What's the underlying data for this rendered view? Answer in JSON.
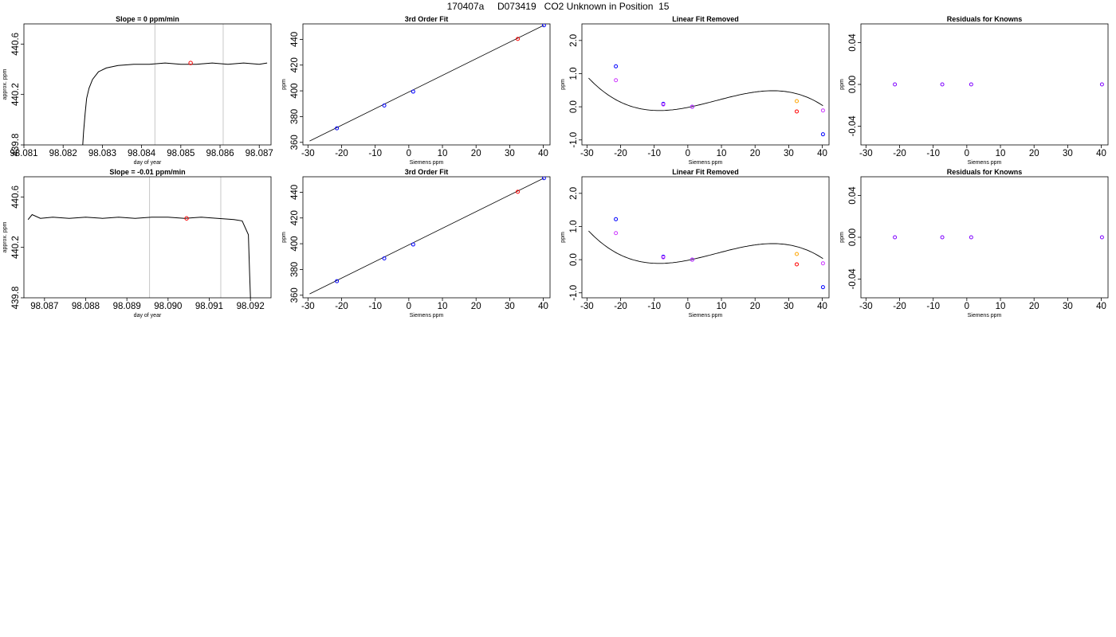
{
  "page_title": "170407a     D073419   CO2 Unknown in Position  15",
  "colors": {
    "line": "#000000",
    "grid": "#c8c8c8",
    "blue": "#0000ff",
    "red": "#ff0000",
    "magenta": "#cc33ff",
    "orange": "#ffa500",
    "purple": "#7f00ff"
  },
  "chart_data": [
    {
      "type": "line",
      "title": "Slope =  0  ppm/min",
      "xlabel": "day of year",
      "ylabel": "approx. ppm",
      "xlim": [
        98.081,
        98.0873
      ],
      "ylim": [
        439.8,
        440.76
      ],
      "xticks": [
        "98.081",
        "98.082",
        "98.083",
        "98.084",
        "98.085",
        "98.086",
        "98.087"
      ],
      "yticks": [
        "439.8",
        "440.2",
        "440.6"
      ],
      "vlines": [
        98.08434,
        98.08608
      ],
      "series": [
        {
          "points": [
            [
              98.0825,
              439.8
            ],
            [
              98.08252,
              439.9
            ],
            [
              98.08256,
              440.05
            ],
            [
              98.0826,
              440.17
            ],
            [
              98.08266,
              440.25
            ],
            [
              98.08275,
              440.32
            ],
            [
              98.0829,
              440.38
            ],
            [
              98.0831,
              440.41
            ],
            [
              98.0834,
              440.43
            ],
            [
              98.0838,
              440.44
            ],
            [
              98.0842,
              440.44
            ],
            [
              98.0846,
              440.45
            ],
            [
              98.085,
              440.44
            ],
            [
              98.0854,
              440.44
            ],
            [
              98.0858,
              440.45
            ],
            [
              98.0862,
              440.44
            ],
            [
              98.0866,
              440.45
            ],
            [
              98.087,
              440.44
            ],
            [
              98.0872,
              440.45
            ]
          ]
        }
      ],
      "markers": [
        {
          "x": 98.08525,
          "y": 440.45,
          "color": "red"
        }
      ]
    },
    {
      "type": "scatter",
      "title": "3rd Order Fit",
      "xlabel": "Siemens ppm",
      "ylabel": "ppm",
      "xlim": [
        -31.5,
        42
      ],
      "ylim": [
        358,
        452
      ],
      "xticks": [
        "-30",
        "-20",
        "-10",
        "0",
        "10",
        "20",
        "30",
        "40"
      ],
      "yticks": [
        "360",
        "380",
        "400",
        "420",
        "440"
      ],
      "fit_line": [
        [
          -29.5,
          361
        ],
        [
          40.2,
          451
        ]
      ],
      "points": [
        {
          "x": -21.4,
          "y": 370.9,
          "color": "blue"
        },
        {
          "x": -7.3,
          "y": 388.6,
          "color": "blue"
        },
        {
          "x": 1.3,
          "y": 399.4,
          "color": "blue"
        },
        {
          "x": 32.4,
          "y": 440.3,
          "color": "red"
        },
        {
          "x": 40.2,
          "y": 450.9,
          "color": "blue"
        }
      ]
    },
    {
      "type": "scatter",
      "title": "Linear Fit Removed",
      "xlabel": "Siemens ppm",
      "ylabel": "ppm",
      "xlim": [
        -31.5,
        42
      ],
      "ylim": [
        -1.15,
        2.5
      ],
      "xticks": [
        "-30",
        "-20",
        "-10",
        "0",
        "10",
        "20",
        "30",
        "40"
      ],
      "yticks": [
        "-1.0",
        "0.0",
        "1.0",
        "2.0"
      ],
      "curve": {
        "a": -3.1e-05,
        "b": 0.00078,
        "c": 0.02,
        "d": -0.019,
        "from": -29.5,
        "to": 40.2
      },
      "points": [
        {
          "x": -21.4,
          "y": 1.22,
          "color": "blue"
        },
        {
          "x": -21.4,
          "y": 0.8,
          "color": "magenta"
        },
        {
          "x": -7.3,
          "y": 0.09,
          "color": "blue"
        },
        {
          "x": -7.3,
          "y": 0.07,
          "color": "magenta"
        },
        {
          "x": 1.3,
          "y": 0.0,
          "color": "blue"
        },
        {
          "x": 1.3,
          "y": 0.0,
          "color": "magenta"
        },
        {
          "x": 32.4,
          "y": 0.17,
          "color": "orange"
        },
        {
          "x": 32.4,
          "y": -0.14,
          "color": "red"
        },
        {
          "x": 40.2,
          "y": -0.11,
          "color": "magenta"
        },
        {
          "x": 40.2,
          "y": -0.83,
          "color": "blue"
        }
      ]
    },
    {
      "type": "scatter",
      "title": "Residuals for Knowns",
      "xlabel": "Siemens ppm",
      "ylabel": "ppm",
      "xlim": [
        -31.5,
        42
      ],
      "ylim": [
        -0.058,
        0.058
      ],
      "xticks": [
        "-30",
        "-20",
        "-10",
        "0",
        "10",
        "20",
        "30",
        "40"
      ],
      "yticks": [
        "-0.04",
        "0.00",
        "0.04"
      ],
      "points": [
        {
          "x": -21.4,
          "y": 0.0,
          "color": "purple"
        },
        {
          "x": -7.3,
          "y": 0.0,
          "color": "purple"
        },
        {
          "x": 1.3,
          "y": 0.0,
          "color": "purple"
        },
        {
          "x": 40.2,
          "y": 0.0,
          "color": "purple"
        }
      ]
    },
    {
      "type": "line",
      "title": "Slope =  -0.01  ppm/min",
      "xlabel": "day of year",
      "ylabel": "approx. ppm",
      "xlim": [
        98.0865,
        98.0925
      ],
      "ylim": [
        439.8,
        440.76
      ],
      "xticks": [
        "98.087",
        "98.088",
        "98.089",
        "98.090",
        "98.091",
        "98.092"
      ],
      "yticks": [
        "439.8",
        "440.2",
        "440.6"
      ],
      "vlines": [
        98.08955,
        98.09128
      ],
      "series": [
        {
          "points": [
            [
              98.0866,
              440.42
            ],
            [
              98.0867,
              440.46
            ],
            [
              98.0869,
              440.43
            ],
            [
              98.0872,
              440.44
            ],
            [
              98.0876,
              440.43
            ],
            [
              98.088,
              440.44
            ],
            [
              98.0884,
              440.43
            ],
            [
              98.0888,
              440.44
            ],
            [
              98.0892,
              440.43
            ],
            [
              98.0896,
              440.44
            ],
            [
              98.09,
              440.44
            ],
            [
              98.0904,
              440.43
            ],
            [
              98.0908,
              440.44
            ],
            [
              98.0912,
              440.43
            ],
            [
              98.0916,
              440.42
            ],
            [
              98.0918,
              440.41
            ],
            [
              98.09195,
              440.3
            ],
            [
              98.09198,
              440.0
            ],
            [
              98.092,
              439.8
            ]
          ]
        }
      ],
      "markers": [
        {
          "x": 98.09045,
          "y": 440.43,
          "color": "red"
        }
      ]
    },
    {
      "type": "scatter",
      "title": "3rd Order Fit",
      "xlabel": "Siemens ppm",
      "ylabel": "ppm",
      "xlim": [
        -31.5,
        42
      ],
      "ylim": [
        358,
        452
      ],
      "xticks": [
        "-30",
        "-20",
        "-10",
        "0",
        "10",
        "20",
        "30",
        "40"
      ],
      "yticks": [
        "360",
        "380",
        "400",
        "420",
        "440"
      ],
      "fit_line": [
        [
          -29.5,
          361
        ],
        [
          40.2,
          451
        ]
      ],
      "points": [
        {
          "x": -21.4,
          "y": 370.9,
          "color": "blue"
        },
        {
          "x": -7.3,
          "y": 388.6,
          "color": "blue"
        },
        {
          "x": 1.3,
          "y": 399.4,
          "color": "blue"
        },
        {
          "x": 32.4,
          "y": 440.3,
          "color": "red"
        },
        {
          "x": 40.2,
          "y": 450.9,
          "color": "blue"
        }
      ]
    },
    {
      "type": "scatter",
      "title": "Linear Fit Removed",
      "xlabel": "Siemens ppm",
      "ylabel": "ppm",
      "xlim": [
        -31.5,
        42
      ],
      "ylim": [
        -1.15,
        2.5
      ],
      "xticks": [
        "-30",
        "-20",
        "-10",
        "0",
        "10",
        "20",
        "30",
        "40"
      ],
      "yticks": [
        "-1.0",
        "0.0",
        "1.0",
        "2.0"
      ],
      "curve": {
        "a": -3.1e-05,
        "b": 0.00078,
        "c": 0.02,
        "d": -0.019,
        "from": -29.5,
        "to": 40.2
      },
      "points": [
        {
          "x": -21.4,
          "y": 1.22,
          "color": "blue"
        },
        {
          "x": -21.4,
          "y": 0.8,
          "color": "magenta"
        },
        {
          "x": -7.3,
          "y": 0.09,
          "color": "blue"
        },
        {
          "x": -7.3,
          "y": 0.07,
          "color": "magenta"
        },
        {
          "x": 1.3,
          "y": 0.0,
          "color": "blue"
        },
        {
          "x": 1.3,
          "y": 0.0,
          "color": "magenta"
        },
        {
          "x": 32.4,
          "y": 0.17,
          "color": "orange"
        },
        {
          "x": 32.4,
          "y": -0.14,
          "color": "red"
        },
        {
          "x": 40.2,
          "y": -0.11,
          "color": "magenta"
        },
        {
          "x": 40.2,
          "y": -0.83,
          "color": "blue"
        }
      ]
    },
    {
      "type": "scatter",
      "title": "Residuals for Knowns",
      "xlabel": "Siemens ppm",
      "ylabel": "ppm",
      "xlim": [
        -31.5,
        42
      ],
      "ylim": [
        -0.058,
        0.058
      ],
      "xticks": [
        "-30",
        "-20",
        "-10",
        "0",
        "10",
        "20",
        "30",
        "40"
      ],
      "yticks": [
        "-0.04",
        "0.00",
        "0.04"
      ],
      "points": [
        {
          "x": -21.4,
          "y": 0.0,
          "color": "purple"
        },
        {
          "x": -7.3,
          "y": 0.0,
          "color": "purple"
        },
        {
          "x": 1.3,
          "y": 0.0,
          "color": "purple"
        },
        {
          "x": 40.2,
          "y": 0.0,
          "color": "purple"
        }
      ]
    }
  ]
}
